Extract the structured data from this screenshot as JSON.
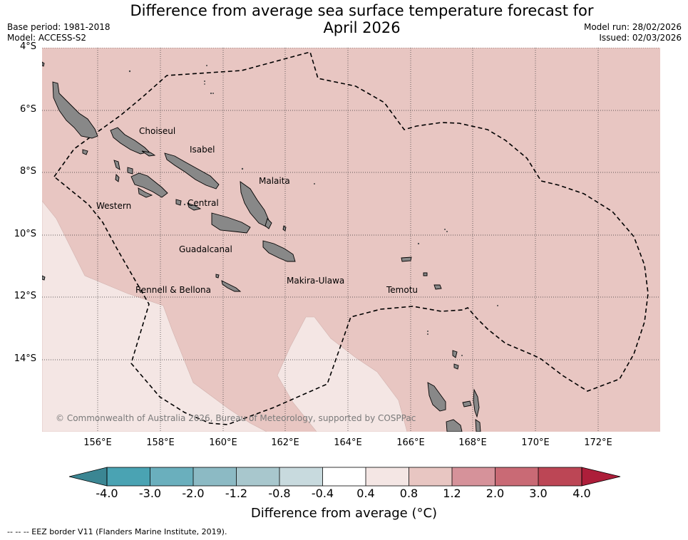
{
  "title": "Difference from average sea surface temperature forecast for",
  "subtitle": "April 2026",
  "base_period": "Base period: 1981-2018",
  "model": "Model: ACCESS-S2",
  "model_run": "Model run: 28/02/2026",
  "issued": "Issued: 02/03/2026",
  "map": {
    "lat_labels": [
      "4°S",
      "6°S",
      "8°S",
      "10°S",
      "12°S",
      "14°S"
    ],
    "lon_labels": [
      "156°E",
      "158°E",
      "160°E",
      "162°E",
      "164°E",
      "166°E",
      "168°E",
      "170°E",
      "172°E"
    ],
    "regions": [
      "Choiseul",
      "Isabel",
      "Malaita",
      "Western",
      "Central",
      "Guadalcanal",
      "Rennell & Bellona",
      "Makira-Ulawa",
      "Temotu"
    ],
    "copyright": "© Commonwealth of Australia 2026, Bureau of Meteorology, supported by COSPPac",
    "fill_colors": {
      "anomaly_0_8_to_1_2": "#e8c6c2",
      "anomaly_0_4_to_0_8": "#f4e6e4",
      "land": "#888888"
    }
  },
  "colorbar": {
    "labels": [
      "-4.0",
      "-3.0",
      "-2.0",
      "-1.2",
      "-0.8",
      "-0.4",
      "0.4",
      "0.8",
      "1.2",
      "2.0",
      "3.0",
      "4.0"
    ],
    "colors": [
      "#3b8693",
      "#4aa3b3",
      "#6aafbd",
      "#8cbac4",
      "#a8c7cd",
      "#c8dade",
      "#ffffff",
      "#f4e6e4",
      "#e8c6c2",
      "#d6929a",
      "#c96a75",
      "#bc4655",
      "#ad1e3a"
    ],
    "title": "Difference from average (°C)"
  },
  "footer": "--  --  -- EEZ border V11 (Flanders Marine Institute, 2019)."
}
